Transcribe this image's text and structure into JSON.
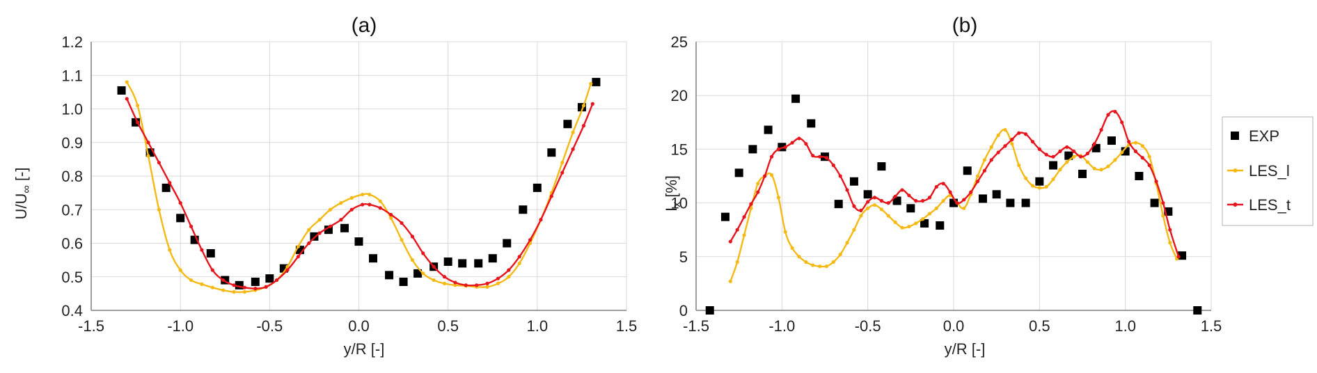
{
  "colors": {
    "exp": "#000000",
    "les_l": "#f5b914",
    "les_t": "#e8141c",
    "grid": "#d9d9d9",
    "axis": "#7f7f7f"
  },
  "legend": {
    "placement": "right",
    "entries": [
      "EXP",
      "LES_l",
      "LES_t"
    ]
  },
  "chart_data": [
    {
      "type": "line",
      "title": "(a)",
      "xlabel": "y/R [-]",
      "ylabel": "U/U",
      "ylabel_sub": "∞",
      "ylabel_unit": " [-]",
      "xlim": [
        -1.5,
        1.5
      ],
      "ylim": [
        0.4,
        1.2
      ],
      "xticks": [
        "-1.5",
        "-1.0",
        "-0.5",
        "0.0",
        "0.5",
        "1.0",
        "1.5"
      ],
      "yticks": [
        "0.4",
        "0.5",
        "0.6",
        "0.7",
        "0.8",
        "0.9",
        "1.0",
        "1.1",
        "1.2"
      ],
      "grid": true,
      "series": [
        {
          "name": "EXP",
          "style": "markers",
          "x": [
            -1.33,
            -1.25,
            -1.17,
            -1.08,
            -1.0,
            -0.92,
            -0.83,
            -0.75,
            -0.67,
            -0.58,
            -0.5,
            -0.42,
            -0.33,
            -0.25,
            -0.17,
            -0.08,
            0.0,
            0.08,
            0.17,
            0.25,
            0.33,
            0.42,
            0.5,
            0.58,
            0.67,
            0.75,
            0.83,
            0.92,
            1.0,
            1.08,
            1.17,
            1.25,
            1.33
          ],
          "y": [
            1.055,
            0.96,
            0.87,
            0.765,
            0.675,
            0.61,
            0.57,
            0.49,
            0.475,
            0.485,
            0.495,
            0.525,
            0.58,
            0.62,
            0.64,
            0.645,
            0.605,
            0.555,
            0.505,
            0.485,
            0.51,
            0.53,
            0.545,
            0.54,
            0.54,
            0.555,
            0.6,
            0.7,
            0.765,
            0.87,
            0.955,
            1.005,
            1.08
          ]
        },
        {
          "name": "LES_l",
          "style": "line",
          "x": [
            -1.3,
            -1.24,
            -1.18,
            -1.12,
            -1.06,
            -1.0,
            -0.94,
            -0.88,
            -0.82,
            -0.76,
            -0.7,
            -0.64,
            -0.58,
            -0.52,
            -0.46,
            -0.4,
            -0.34,
            -0.28,
            -0.22,
            -0.16,
            -0.1,
            -0.04,
            0.02,
            0.06,
            0.12,
            0.18,
            0.24,
            0.3,
            0.36,
            0.42,
            0.48,
            0.54,
            0.6,
            0.66,
            0.72,
            0.78,
            0.84,
            0.9,
            0.96,
            1.02,
            1.08,
            1.14,
            1.2,
            1.26,
            1.3
          ],
          "y": [
            1.08,
            1.01,
            0.86,
            0.7,
            0.58,
            0.52,
            0.49,
            0.478,
            0.468,
            0.46,
            0.455,
            0.455,
            0.46,
            0.47,
            0.49,
            0.53,
            0.59,
            0.64,
            0.67,
            0.7,
            0.72,
            0.735,
            0.745,
            0.745,
            0.725,
            0.675,
            0.61,
            0.55,
            0.51,
            0.49,
            0.48,
            0.475,
            0.473,
            0.47,
            0.47,
            0.48,
            0.5,
            0.54,
            0.6,
            0.67,
            0.75,
            0.84,
            0.93,
            1.01,
            1.075
          ]
        },
        {
          "name": "LES_t",
          "style": "line",
          "x": [
            -1.3,
            -1.24,
            -1.18,
            -1.12,
            -1.06,
            -1.0,
            -0.94,
            -0.88,
            -0.82,
            -0.76,
            -0.7,
            -0.64,
            -0.58,
            -0.52,
            -0.46,
            -0.4,
            -0.34,
            -0.28,
            -0.22,
            -0.16,
            -0.1,
            -0.04,
            0.02,
            0.06,
            0.12,
            0.18,
            0.24,
            0.3,
            0.36,
            0.42,
            0.48,
            0.54,
            0.6,
            0.66,
            0.72,
            0.78,
            0.84,
            0.9,
            0.96,
            1.02,
            1.08,
            1.14,
            1.2,
            1.26,
            1.31
          ],
          "y": [
            1.03,
            0.96,
            0.9,
            0.84,
            0.78,
            0.72,
            0.65,
            0.58,
            0.52,
            0.49,
            0.475,
            0.468,
            0.465,
            0.47,
            0.49,
            0.52,
            0.56,
            0.6,
            0.63,
            0.65,
            0.67,
            0.7,
            0.715,
            0.715,
            0.705,
            0.685,
            0.66,
            0.62,
            0.57,
            0.53,
            0.5,
            0.483,
            0.475,
            0.475,
            0.48,
            0.495,
            0.52,
            0.56,
            0.61,
            0.67,
            0.74,
            0.81,
            0.88,
            0.95,
            1.015
          ]
        }
      ]
    },
    {
      "type": "line",
      "title": "(b)",
      "xlabel": "y/R [-]",
      "ylabel": "I",
      "ylabel_sub": "x",
      "ylabel_unit": " [%]",
      "xlim": [
        -1.5,
        1.5
      ],
      "ylim": [
        0,
        25
      ],
      "xticks": [
        "-1.5",
        "-1.0",
        "-0.5",
        "0.0",
        "0.5",
        "1.0",
        "1.5"
      ],
      "yticks": [
        "0",
        "5",
        "10",
        "15",
        "20",
        "25"
      ],
      "grid": true,
      "series": [
        {
          "name": "EXP",
          "style": "markers",
          "x": [
            -1.42,
            -1.33,
            -1.25,
            -1.17,
            -1.08,
            -1.0,
            -0.92,
            -0.83,
            -0.75,
            -0.67,
            -0.58,
            -0.5,
            -0.42,
            -0.33,
            -0.25,
            -0.17,
            -0.08,
            0.0,
            0.08,
            0.17,
            0.25,
            0.33,
            0.42,
            0.5,
            0.58,
            0.67,
            0.75,
            0.83,
            0.92,
            1.0,
            1.08,
            1.17,
            1.25,
            1.33,
            1.42
          ],
          "y": [
            0,
            8.7,
            12.8,
            15.0,
            16.8,
            15.2,
            19.7,
            17.4,
            14.3,
            9.9,
            12.0,
            10.8,
            13.4,
            10.2,
            9.5,
            8.1,
            7.9,
            10.0,
            13.0,
            10.4,
            10.8,
            10.0,
            10.0,
            12.0,
            13.5,
            14.4,
            12.7,
            15.1,
            15.8,
            14.8,
            12.5,
            10.0,
            9.2,
            5.1,
            0
          ]
        },
        {
          "name": "LES_l",
          "style": "line",
          "x": [
            -1.3,
            -1.26,
            -1.22,
            -1.18,
            -1.14,
            -1.1,
            -1.06,
            -1.02,
            -0.98,
            -0.94,
            -0.9,
            -0.86,
            -0.82,
            -0.78,
            -0.74,
            -0.7,
            -0.66,
            -0.62,
            -0.58,
            -0.54,
            -0.5,
            -0.46,
            -0.42,
            -0.38,
            -0.34,
            -0.3,
            -0.26,
            -0.22,
            -0.18,
            -0.14,
            -0.1,
            -0.06,
            -0.02,
            0.02,
            0.06,
            0.1,
            0.14,
            0.18,
            0.22,
            0.26,
            0.3,
            0.34,
            0.38,
            0.42,
            0.46,
            0.5,
            0.54,
            0.58,
            0.62,
            0.66,
            0.7,
            0.74,
            0.78,
            0.82,
            0.86,
            0.9,
            0.94,
            0.98,
            1.02,
            1.06,
            1.1,
            1.14,
            1.18,
            1.22,
            1.26,
            1.3
          ],
          "y": [
            2.7,
            4.5,
            7.0,
            9.5,
            11.8,
            12.5,
            12.6,
            10.5,
            7.3,
            5.8,
            5.0,
            4.5,
            4.2,
            4.1,
            4.1,
            4.5,
            5.2,
            6.3,
            7.5,
            8.8,
            9.5,
            9.8,
            9.4,
            8.8,
            8.2,
            7.7,
            7.8,
            8.1,
            8.5,
            9.0,
            9.5,
            10.2,
            10.7,
            10.0,
            9.5,
            10.8,
            12.5,
            14.0,
            15.2,
            16.3,
            16.8,
            15.5,
            13.5,
            12.3,
            11.6,
            11.4,
            11.5,
            12.2,
            13.1,
            13.8,
            14.3,
            14.4,
            13.8,
            13.2,
            13.1,
            13.4,
            14.0,
            14.7,
            15.4,
            15.6,
            15.3,
            14.3,
            11.8,
            8.8,
            6.3,
            4.8
          ]
        },
        {
          "name": "LES_t",
          "style": "line",
          "x": [
            -1.3,
            -1.26,
            -1.22,
            -1.18,
            -1.14,
            -1.1,
            -1.06,
            -1.02,
            -0.98,
            -0.94,
            -0.9,
            -0.86,
            -0.82,
            -0.78,
            -0.74,
            -0.7,
            -0.66,
            -0.62,
            -0.58,
            -0.54,
            -0.5,
            -0.46,
            -0.42,
            -0.38,
            -0.34,
            -0.3,
            -0.26,
            -0.22,
            -0.18,
            -0.14,
            -0.1,
            -0.06,
            -0.02,
            0.02,
            0.06,
            0.1,
            0.14,
            0.18,
            0.22,
            0.26,
            0.3,
            0.34,
            0.38,
            0.42,
            0.46,
            0.5,
            0.54,
            0.58,
            0.62,
            0.66,
            0.7,
            0.74,
            0.78,
            0.82,
            0.86,
            0.9,
            0.94,
            0.98,
            1.02,
            1.06,
            1.1,
            1.14,
            1.18,
            1.22,
            1.26,
            1.31
          ],
          "y": [
            6.4,
            7.5,
            8.7,
            9.9,
            11.0,
            12.5,
            14.3,
            15.0,
            15.2,
            15.6,
            16.0,
            15.5,
            14.4,
            14.3,
            14.2,
            13.5,
            12.5,
            11.2,
            9.7,
            9.3,
            10.1,
            10.5,
            10.2,
            10.0,
            10.6,
            11.2,
            10.7,
            10.2,
            10.2,
            10.5,
            11.5,
            11.8,
            11.0,
            10.0,
            10.3,
            11.0,
            12.0,
            13.0,
            14.0,
            14.7,
            15.3,
            15.9,
            16.5,
            16.4,
            15.7,
            15.0,
            14.5,
            14.3,
            14.8,
            15.2,
            14.8,
            14.3,
            14.6,
            15.5,
            16.8,
            18.2,
            18.5,
            17.5,
            15.7,
            14.8,
            14.2,
            13.5,
            12.0,
            10.0,
            7.5,
            5.0
          ]
        }
      ]
    }
  ]
}
